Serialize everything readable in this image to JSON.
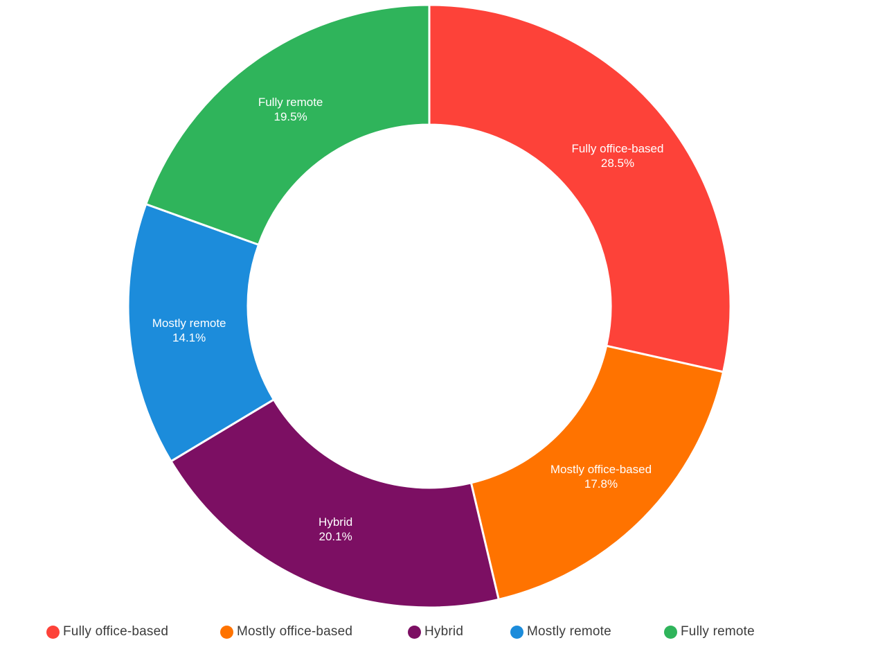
{
  "chart_data": {
    "type": "pie",
    "subtype": "donut",
    "title": "",
    "categories": [
      "Fully office-based",
      "Mostly office-based",
      "Hybrid",
      "Mostly remote",
      "Fully remote"
    ],
    "values": [
      28.5,
      17.8,
      20.1,
      14.1,
      19.5
    ],
    "display_percents": [
      "28.5%",
      "17.8%",
      "20.1%",
      "14.1%",
      "19.5%"
    ],
    "unit": "%",
    "colors": [
      "#FD4239",
      "#FF7300",
      "#7C0F63",
      "#1C8CDB",
      "#2FB45B"
    ],
    "hole_ratio": 0.6,
    "start_angle_deg": 0,
    "direction": "clockwise",
    "legend_position": "bottom",
    "slice_label_color": "#FFFFFF",
    "legend_text_color": "#3C3C3C",
    "background_color": "#FFFFFF"
  }
}
